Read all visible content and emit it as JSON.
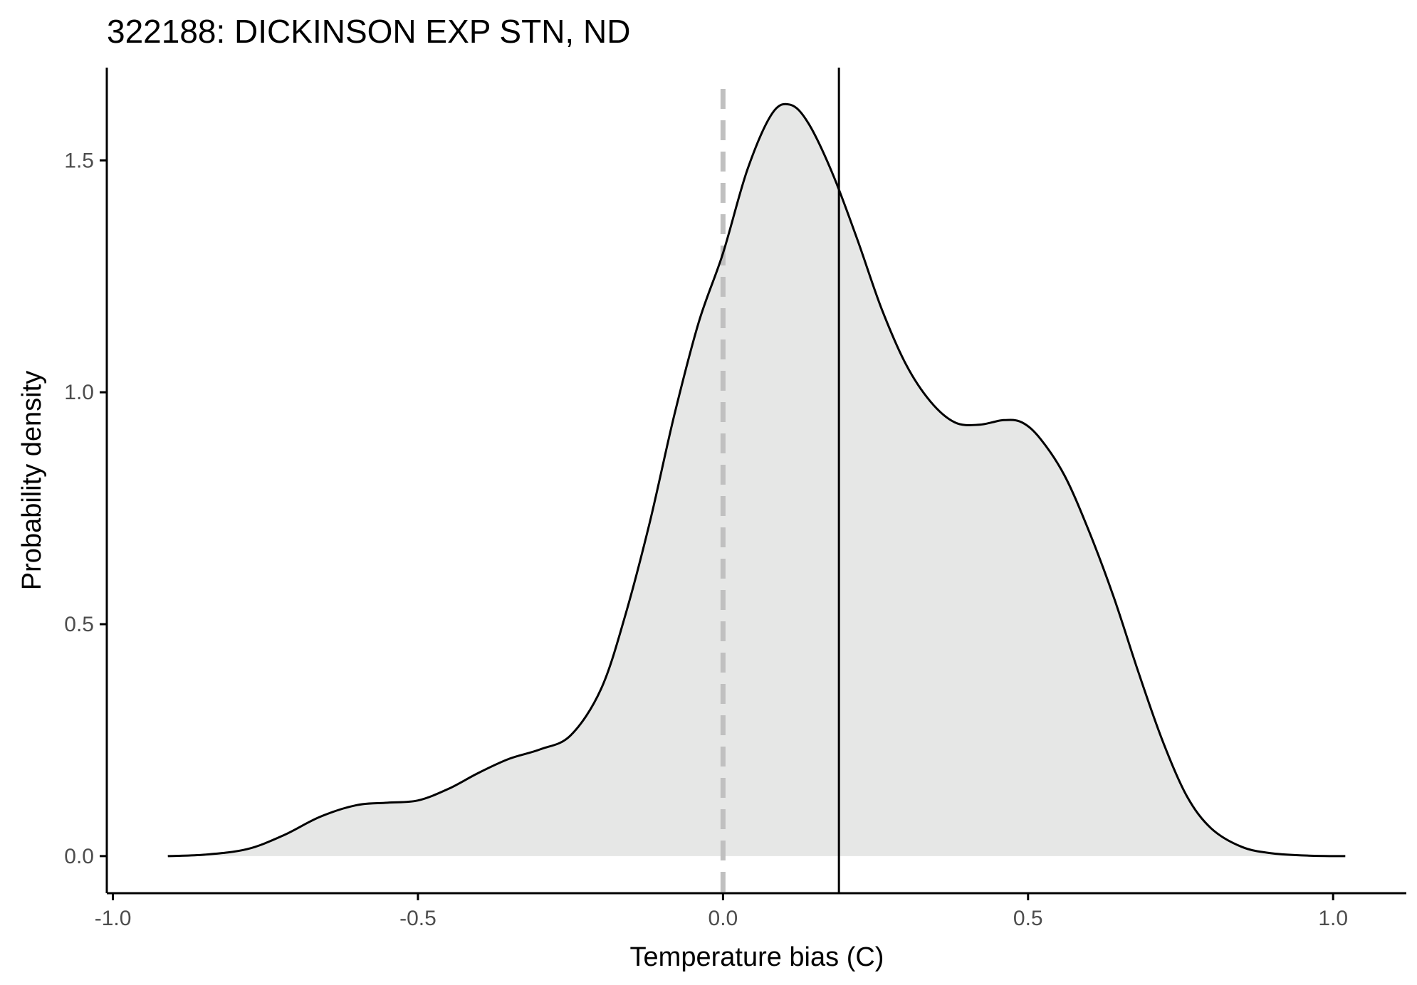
{
  "chart_data": {
    "type": "area",
    "title": "322188: DICKINSON EXP STN, ND",
    "xlabel": "Temperature bias (C)",
    "ylabel": "Probability density",
    "xlim": [
      -1.01,
      1.12
    ],
    "ylim": [
      -0.08,
      1.7
    ],
    "x_ticks": [
      -1.0,
      -0.5,
      0.0,
      0.5,
      1.0
    ],
    "x_tick_labels": [
      "-1.0",
      "-0.5",
      "0.0",
      "0.5",
      "1.0"
    ],
    "y_ticks": [
      0.0,
      0.5,
      1.0,
      1.5
    ],
    "y_tick_labels": [
      "0.0",
      "0.5",
      "1.0",
      "1.5"
    ],
    "grid": false,
    "fill_color": "#e6e7e6",
    "line_color": "#000000",
    "reference_lines": [
      {
        "name": "zero",
        "x": 0.0,
        "style": "dashed",
        "color": "#c0c0c0"
      },
      {
        "name": "mean",
        "x": 0.19,
        "style": "solid",
        "color": "#000000"
      }
    ],
    "series": [
      {
        "x": [
          -0.91,
          -0.85,
          -0.78,
          -0.72,
          -0.66,
          -0.6,
          -0.55,
          -0.5,
          -0.45,
          -0.4,
          -0.35,
          -0.3,
          -0.25,
          -0.2,
          -0.16,
          -0.12,
          -0.08,
          -0.04,
          0.0,
          0.04,
          0.08,
          0.11,
          0.14,
          0.18,
          0.22,
          0.26,
          0.3,
          0.34,
          0.38,
          0.42,
          0.46,
          0.49,
          0.52,
          0.56,
          0.6,
          0.64,
          0.68,
          0.72,
          0.76,
          0.8,
          0.85,
          0.9,
          0.96,
          1.02
        ],
        "y": [
          0.0,
          0.003,
          0.015,
          0.045,
          0.085,
          0.11,
          0.115,
          0.12,
          0.145,
          0.18,
          0.21,
          0.23,
          0.26,
          0.36,
          0.52,
          0.72,
          0.95,
          1.15,
          1.3,
          1.48,
          1.6,
          1.62,
          1.58,
          1.47,
          1.33,
          1.18,
          1.06,
          0.98,
          0.935,
          0.93,
          0.94,
          0.935,
          0.9,
          0.82,
          0.7,
          0.56,
          0.4,
          0.25,
          0.13,
          0.06,
          0.02,
          0.006,
          0.001,
          0.0
        ]
      }
    ]
  }
}
